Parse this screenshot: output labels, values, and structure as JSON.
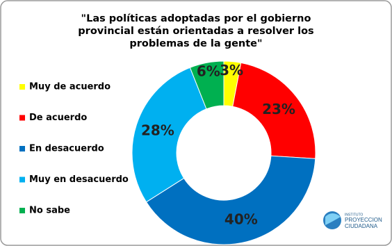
{
  "chart_data": {
    "type": "doughnut",
    "title": [
      "\"Las políticas adoptadas por el gobierno",
      "provincial están orientadas a resolver los",
      "problemas de la gente\""
    ],
    "categories": [
      "Muy de acuerdo",
      "De acuerdo",
      "En desacuerdo",
      "Muy en desacuerdo",
      "No sabe"
    ],
    "values": [
      3,
      23,
      40,
      28,
      6
    ],
    "value_labels": [
      "3%",
      "23%",
      "40%",
      "28%",
      "6%"
    ],
    "colors": [
      "#ffff00",
      "#ff0000",
      "#0070c0",
      "#00b0f0",
      "#00b050"
    ],
    "legend": "left"
  },
  "logo": {
    "lines": [
      "INSTITUTO",
      "PROYECCION",
      "CIUDADANA"
    ]
  }
}
